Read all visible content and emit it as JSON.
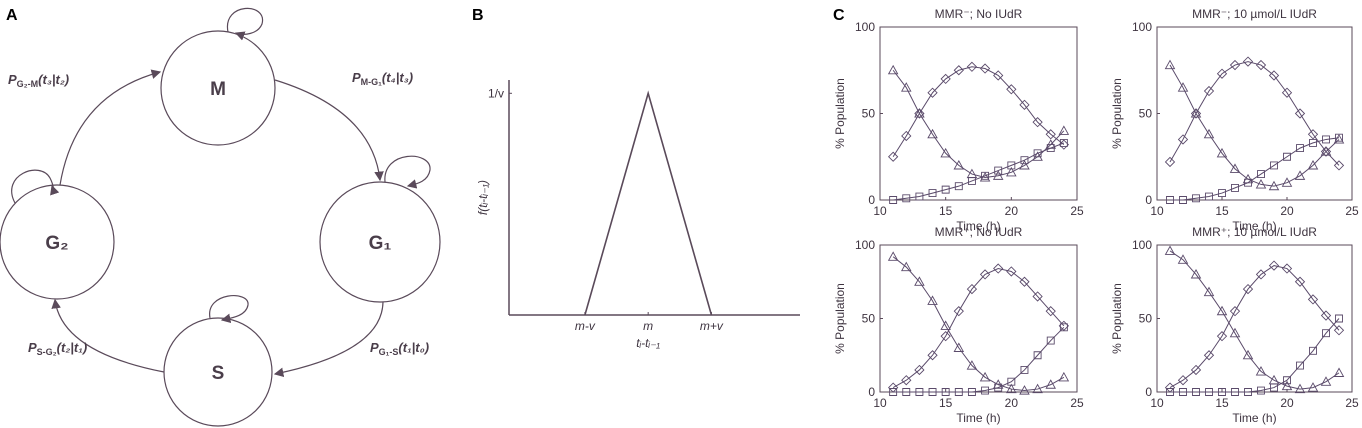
{
  "panel_labels": [
    "A",
    "B",
    "C"
  ],
  "diagram": {
    "nodes": [
      {
        "label": "M"
      },
      {
        "label": "G₁"
      },
      {
        "label": "S"
      },
      {
        "label": "G₂"
      }
    ],
    "edges": [
      {
        "label": {
          "symbol": "P",
          "subscript": "G₂-M",
          "argument": "(t₃|t₂)"
        }
      },
      {
        "label": {
          "symbol": "P",
          "subscript": "M-G₁",
          "argument": "(t₄|t₃)"
        }
      },
      {
        "label": {
          "symbol": "P",
          "subscript": "G₁-S",
          "argument": "(t₁|t₀)"
        }
      },
      {
        "label": {
          "symbol": "P",
          "subscript": "S-G₂",
          "argument": "(t₂|t₁)"
        }
      }
    ]
  },
  "chart_data": [
    {
      "type": "line",
      "x": [
        -1,
        0,
        1
      ],
      "values": [
        0,
        1,
        0
      ],
      "color": "#5a4a5a",
      "xlim": [
        -2.2,
        2.4
      ],
      "ylim": [
        0,
        1.06
      ],
      "xticks": [
        {
          "value": -1,
          "label": "m-v"
        },
        {
          "value": 0,
          "label": "m"
        },
        {
          "value": 1,
          "label": "m+v"
        }
      ],
      "yticks": [
        {
          "value": 1,
          "label": "1/v"
        }
      ],
      "xlabel": "tᵢ-tᵢ₋₁",
      "ylabel": "f(tᵢ-tᵢ₋₁)"
    },
    {
      "type": "line",
      "title": "MMR⁻; No IUdR",
      "xlabel": "Time (h)",
      "ylabel": "% Population",
      "xlim": [
        10,
        25
      ],
      "ylim": [
        0,
        100
      ],
      "xticks": [
        10,
        15,
        20,
        25
      ],
      "yticks": [
        0,
        50,
        100
      ],
      "x": [
        11,
        12,
        13,
        14,
        15,
        16,
        17,
        18,
        19,
        20,
        21,
        22,
        23,
        24
      ],
      "series": [
        {
          "marker": "triangle",
          "color": "#5a4a6a",
          "values": [
            75,
            65,
            50,
            38,
            27,
            20,
            15,
            13,
            14,
            16,
            20,
            25,
            32,
            40
          ]
        },
        {
          "marker": "diamond",
          "color": "#5a4a6a",
          "values": [
            25,
            37,
            50,
            62,
            70,
            75,
            77,
            76,
            72,
            64,
            55,
            45,
            38,
            32
          ]
        },
        {
          "marker": "square",
          "color": "#5a4a6a",
          "values": [
            0,
            1,
            2,
            4,
            6,
            8,
            11,
            14,
            17,
            20,
            23,
            27,
            30,
            33
          ]
        }
      ]
    },
    {
      "type": "line",
      "title": "MMR⁻; 10 µmol/L IUdR",
      "xlabel": "Time (h)",
      "ylabel": "% Population",
      "xlim": [
        10,
        25
      ],
      "ylim": [
        0,
        100
      ],
      "xticks": [
        10,
        15,
        20,
        25
      ],
      "yticks": [
        0,
        50,
        100
      ],
      "x": [
        11,
        12,
        13,
        14,
        15,
        16,
        17,
        18,
        19,
        20,
        21,
        22,
        23,
        24
      ],
      "series": [
        {
          "marker": "triangle",
          "color": "#5a4a6a",
          "values": [
            78,
            65,
            50,
            38,
            27,
            18,
            12,
            9,
            8,
            10,
            14,
            20,
            28,
            35
          ]
        },
        {
          "marker": "diamond",
          "color": "#5a4a6a",
          "values": [
            22,
            35,
            50,
            63,
            73,
            78,
            80,
            78,
            72,
            62,
            50,
            38,
            28,
            20
          ]
        },
        {
          "marker": "square",
          "color": "#5a4a6a",
          "values": [
            0,
            0,
            1,
            2,
            4,
            7,
            10,
            15,
            20,
            25,
            30,
            33,
            35,
            36
          ]
        }
      ]
    },
    {
      "type": "line",
      "title": "MMR⁺; No IUdR",
      "xlabel": "Time (h)",
      "ylabel": "% Population",
      "xlim": [
        10,
        25
      ],
      "ylim": [
        0,
        100
      ],
      "xticks": [
        10,
        15,
        20,
        25
      ],
      "yticks": [
        0,
        50,
        100
      ],
      "x": [
        11,
        12,
        13,
        14,
        15,
        16,
        17,
        18,
        19,
        20,
        21,
        22,
        23,
        24
      ],
      "series": [
        {
          "marker": "triangle",
          "color": "#5a4a6a",
          "values": [
            92,
            85,
            75,
            62,
            45,
            30,
            18,
            10,
            5,
            2,
            1,
            2,
            5,
            10
          ]
        },
        {
          "marker": "diamond",
          "color": "#5a4a6a",
          "values": [
            3,
            8,
            15,
            25,
            38,
            55,
            70,
            80,
            84,
            82,
            75,
            65,
            55,
            45
          ]
        },
        {
          "marker": "square",
          "color": "#5a4a6a",
          "values": [
            0,
            0,
            0,
            0,
            0,
            0,
            0,
            1,
            3,
            7,
            15,
            25,
            35,
            44
          ]
        }
      ]
    },
    {
      "type": "line",
      "title": "MMR⁺; 10 µmol/L IUdR",
      "xlabel": "Time (h)",
      "ylabel": "% Population",
      "xlim": [
        10,
        25
      ],
      "ylim": [
        0,
        100
      ],
      "xticks": [
        10,
        15,
        20,
        25
      ],
      "yticks": [
        0,
        50,
        100
      ],
      "x": [
        11,
        12,
        13,
        14,
        15,
        16,
        17,
        18,
        19,
        20,
        21,
        22,
        23,
        24
      ],
      "series": [
        {
          "marker": "triangle",
          "color": "#5a4a6a",
          "values": [
            96,
            90,
            80,
            68,
            55,
            40,
            25,
            14,
            8,
            4,
            2,
            3,
            7,
            13
          ]
        },
        {
          "marker": "diamond",
          "color": "#5a4a6a",
          "values": [
            3,
            8,
            15,
            25,
            38,
            55,
            70,
            80,
            86,
            84,
            75,
            63,
            52,
            42
          ]
        },
        {
          "marker": "square",
          "color": "#5a4a6a",
          "values": [
            0,
            0,
            0,
            0,
            0,
            0,
            0,
            1,
            3,
            8,
            18,
            28,
            40,
            50
          ]
        }
      ]
    }
  ]
}
